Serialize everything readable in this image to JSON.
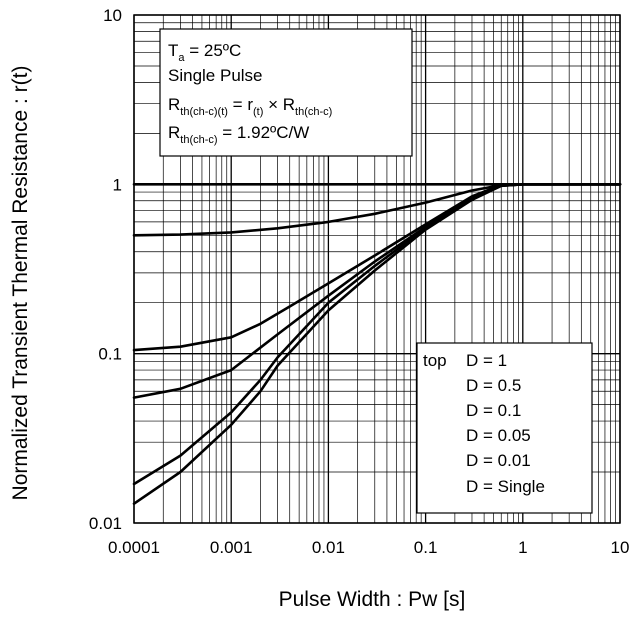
{
  "chart_data": {
    "type": "line",
    "x_scale": "log",
    "y_scale": "log",
    "xlim": [
      0.0001,
      10
    ],
    "ylim": [
      0.01,
      10
    ],
    "grid": true,
    "xlabel": "Pulse Width : Pw [s]",
    "ylabel": "Normalized Transient Thermal Resistance : r(t)",
    "x_tick_labels": [
      "0.0001",
      "0.001",
      "0.01",
      "0.1",
      "1",
      "10"
    ],
    "y_tick_labels": [
      "0.01",
      "0.1",
      "1",
      "10"
    ],
    "x_ticks": [
      0.0001,
      0.001,
      0.01,
      0.1,
      1,
      10
    ],
    "y_ticks": [
      0.01,
      0.1,
      1,
      10
    ],
    "info_box": {
      "line1_main": "T",
      "line1_sub": "a",
      "line1_rest": " = 25ºC",
      "line2": "Single Pulse",
      "line3_a": "R",
      "line3_a_sub": "th(ch-c)(t)",
      "line3_b": " = r",
      "line3_b_sub": "(t)",
      "line3_c": " × R",
      "line3_c_sub": "th(ch-c)",
      "line4_a": "R",
      "line4_a_sub": "th(ch-c)",
      "line4_b": " = 1.92ºC/W"
    },
    "legend": {
      "prefix": "top",
      "entries": [
        "D = 1",
        "D = 0.5",
        "D = 0.1",
        "D = 0.05",
        "D = 0.01",
        "D = Single"
      ]
    },
    "series": [
      {
        "name": "D = 1",
        "x": [
          0.0001,
          10
        ],
        "y": [
          1,
          1
        ]
      },
      {
        "name": "D = 0.5",
        "x": [
          0.0001,
          0.0003,
          0.001,
          0.003,
          0.01,
          0.03,
          0.1,
          0.3,
          0.6,
          1,
          10
        ],
        "y": [
          0.5,
          0.505,
          0.52,
          0.55,
          0.6,
          0.67,
          0.78,
          0.92,
          0.99,
          1,
          1
        ]
      },
      {
        "name": "D = 0.1",
        "x": [
          0.0001,
          0.0003,
          0.001,
          0.002,
          0.004,
          0.01,
          0.03,
          0.1,
          0.3,
          0.6,
          1,
          10
        ],
        "y": [
          0.105,
          0.11,
          0.125,
          0.15,
          0.19,
          0.26,
          0.38,
          0.58,
          0.85,
          0.99,
          1,
          1
        ]
      },
      {
        "name": "D = 0.05",
        "x": [
          0.0001,
          0.0003,
          0.001,
          0.003,
          0.01,
          0.03,
          0.1,
          0.3,
          0.6,
          1,
          10
        ],
        "y": [
          0.055,
          0.062,
          0.08,
          0.13,
          0.22,
          0.35,
          0.56,
          0.84,
          0.98,
          1,
          1
        ]
      },
      {
        "name": "D = 0.01",
        "x": [
          0.0001,
          0.0003,
          0.001,
          0.002,
          0.003,
          0.01,
          0.03,
          0.1,
          0.3,
          0.6,
          1,
          10
        ],
        "y": [
          0.017,
          0.025,
          0.045,
          0.07,
          0.095,
          0.2,
          0.33,
          0.55,
          0.82,
          0.98,
          1,
          1
        ]
      },
      {
        "name": "D = Single",
        "x": [
          0.0001,
          0.0003,
          0.001,
          0.002,
          0.003,
          0.01,
          0.03,
          0.1,
          0.3,
          0.6,
          1,
          10
        ],
        "y": [
          0.013,
          0.02,
          0.038,
          0.06,
          0.085,
          0.18,
          0.31,
          0.54,
          0.81,
          0.98,
          1,
          1
        ]
      }
    ]
  }
}
